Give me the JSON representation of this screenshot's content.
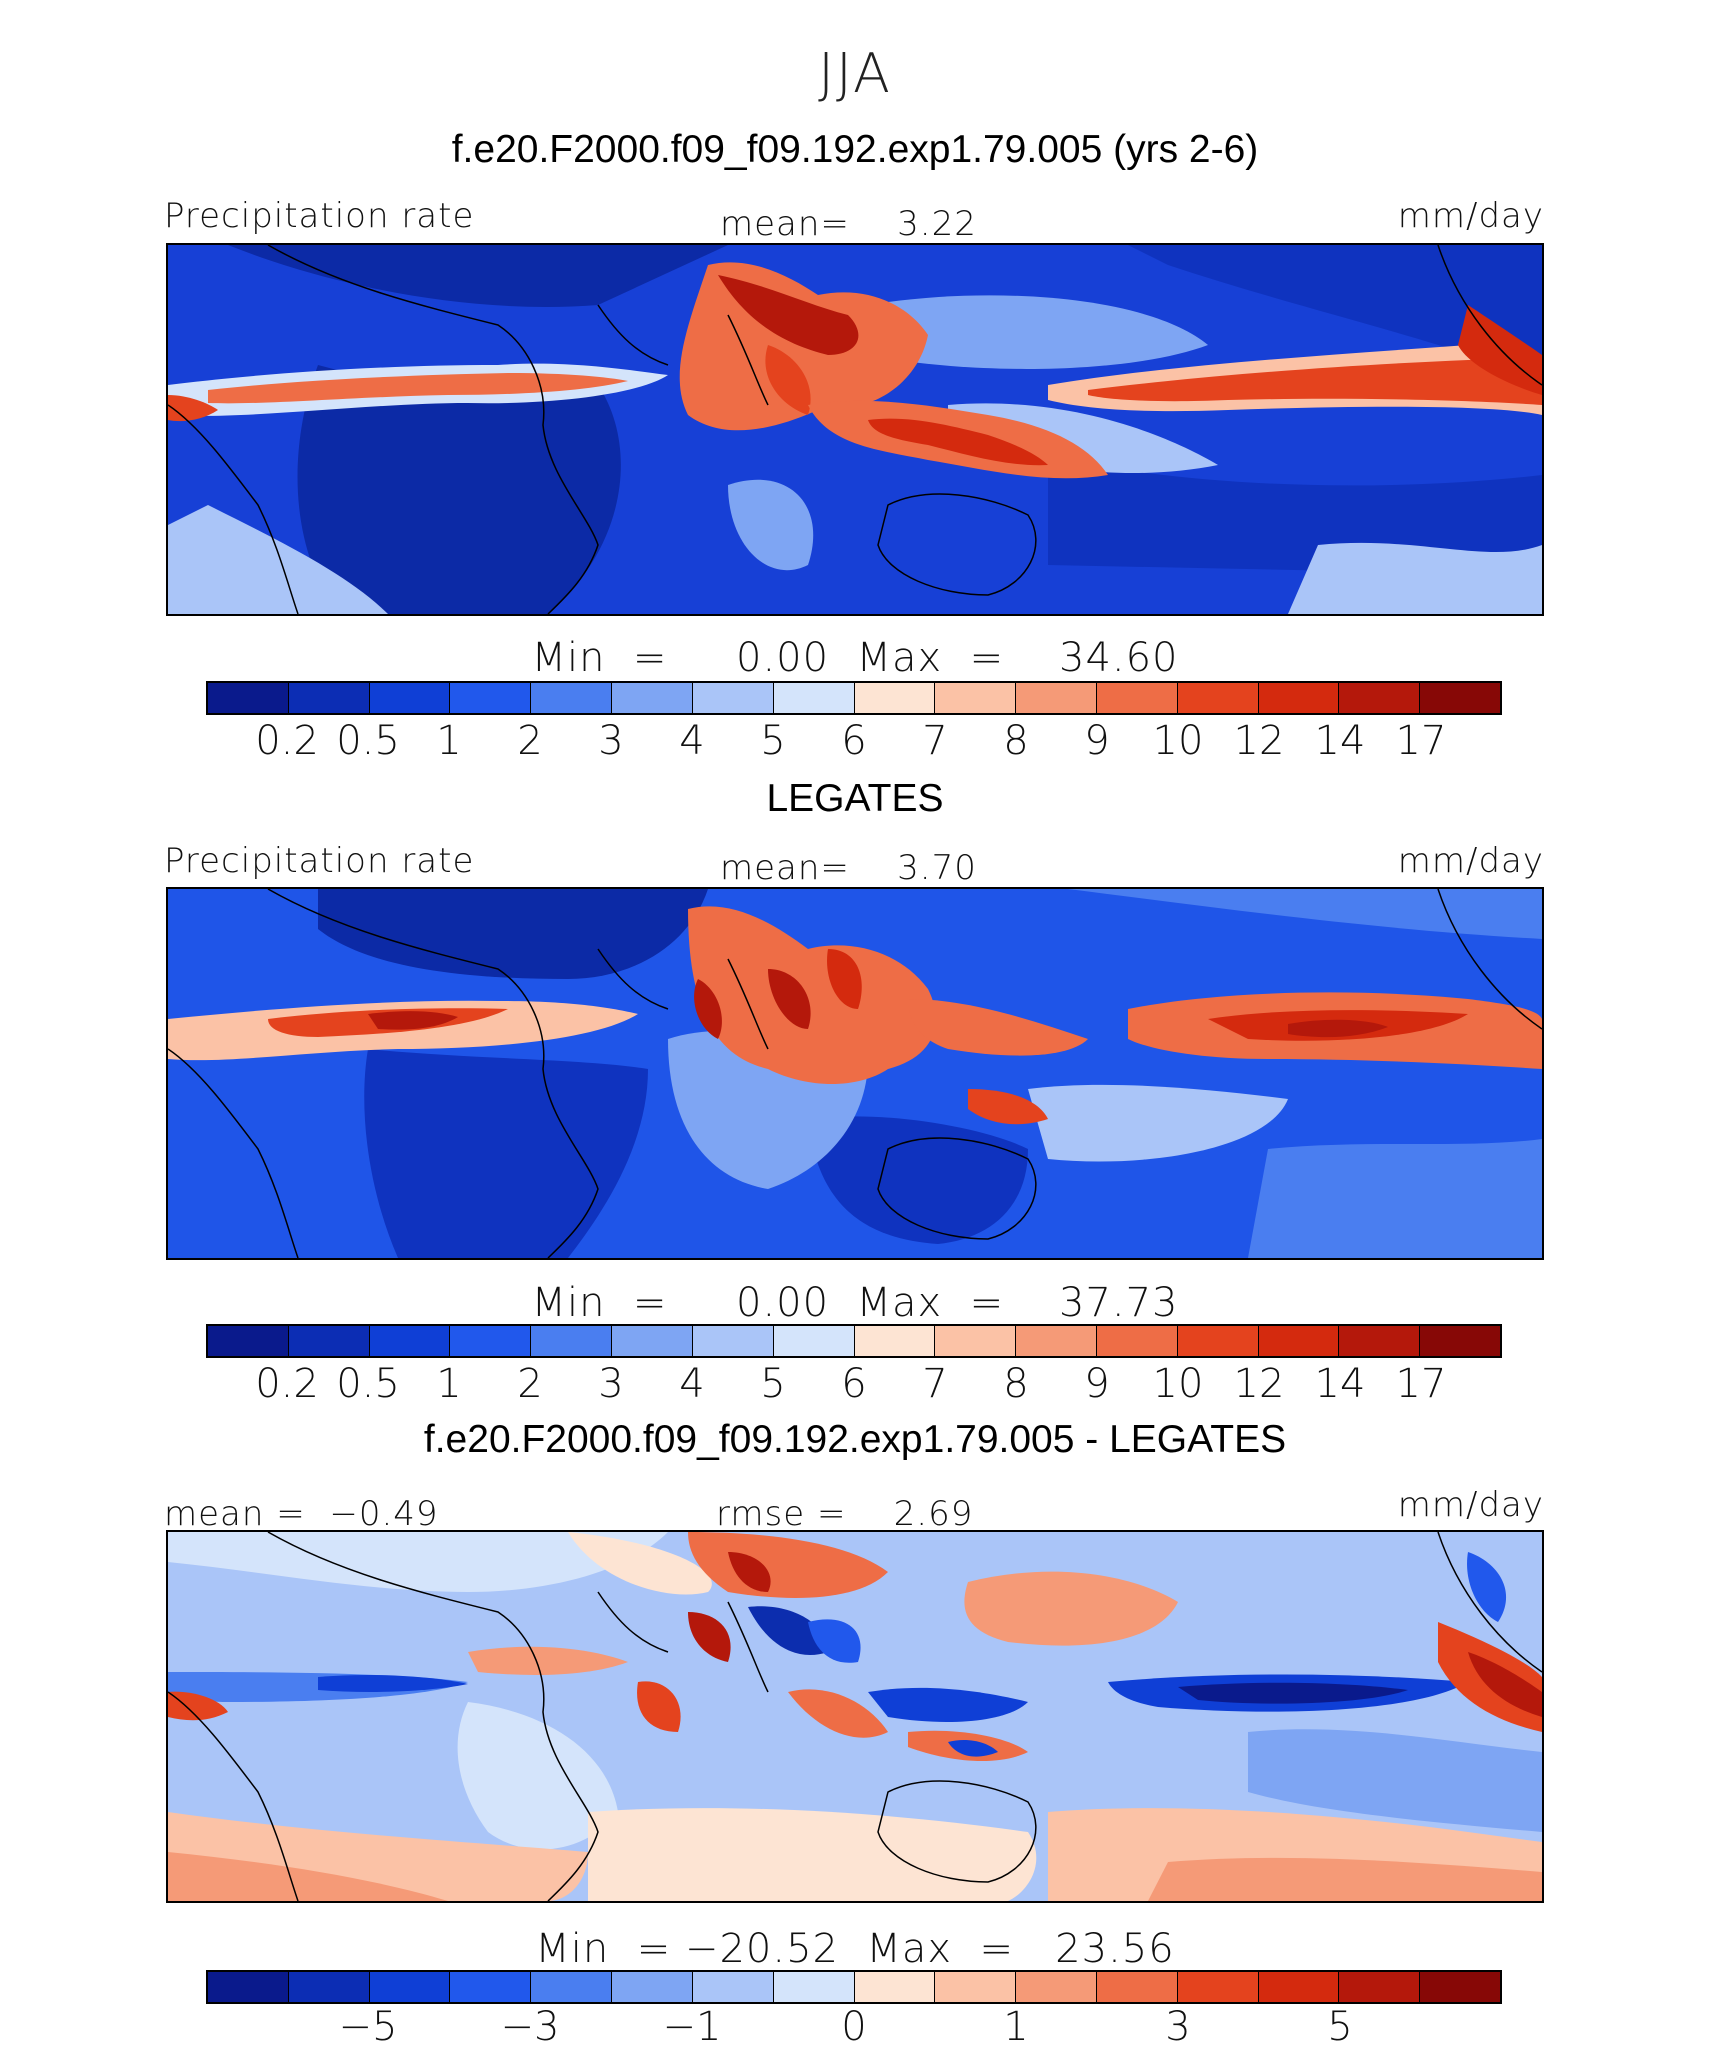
{
  "title": "JJA",
  "colors": {
    "abs_scale": [
      "#0a1a8c",
      "#0c2db4",
      "#0f3fd6",
      "#2158ec",
      "#4a7ef0",
      "#7ea5f3",
      "#aac5f8",
      "#d4e4fb",
      "#fde4d3",
      "#fbc2a6",
      "#f59a77",
      "#ee6d46",
      "#e4431e",
      "#d42a0e",
      "#b4180b",
      "#870806"
    ],
    "diff_scale": [
      "#0a1a8c",
      "#0c2db4",
      "#0f3fd6",
      "#2158ec",
      "#4a7ef0",
      "#7ea5f3",
      "#aac5f8",
      "#d4e4fb",
      "#fde4d3",
      "#fbc2a6",
      "#f59a77",
      "#ee6d46",
      "#e4431e",
      "#d42a0e",
      "#b4180b",
      "#870806"
    ]
  },
  "panels": [
    {
      "title": "f.e20.F2000.f09_f09.192.exp1.79.005 (yrs 2-6)",
      "left_label": "Precipitation rate",
      "center_label": "mean=    3.22",
      "right_label": "mm/day",
      "minmax": "Min  =     0.00  Max  =    34.60",
      "ticks": [
        "0.2",
        "0.5",
        "1",
        "2",
        "3",
        "4",
        "5",
        "6",
        "7",
        "8",
        "9",
        "10",
        "12",
        "14",
        "17"
      ]
    },
    {
      "title": "LEGATES",
      "left_label": "Precipitation rate",
      "center_label": "mean=    3.70",
      "right_label": "mm/day",
      "minmax": "Min  =     0.00  Max  =    37.73",
      "ticks": [
        "0.2",
        "0.5",
        "1",
        "2",
        "3",
        "4",
        "5",
        "6",
        "7",
        "8",
        "9",
        "10",
        "12",
        "14",
        "17"
      ]
    },
    {
      "title": "f.e20.F2000.f09_f09.192.exp1.79.005 - LEGATES",
      "left_label": "mean =  −0.49",
      "center_label": "rmse =    2.69",
      "right_label": "mm/day",
      "minmax": "Min  = −20.52  Max  =   23.56",
      "ticks": [
        "−5",
        "−3",
        "−1",
        "0",
        "1",
        "3",
        "5"
      ]
    }
  ]
}
